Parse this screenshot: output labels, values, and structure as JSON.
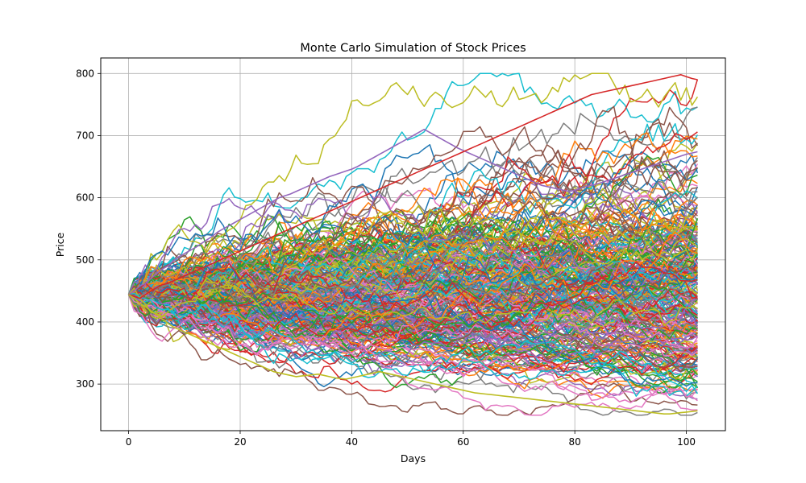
{
  "chart_data": {
    "type": "line",
    "title": "Monte Carlo Simulation of Stock Prices",
    "xlabel": "Days",
    "ylabel": "Price",
    "xlim": [
      -5,
      107
    ],
    "ylim": [
      225,
      825
    ],
    "x_ticks": [
      0,
      20,
      40,
      60,
      80,
      100
    ],
    "y_ticks": [
      300,
      400,
      500,
      600,
      700,
      800
    ],
    "grid": true,
    "legend": "none",
    "days": 103,
    "start_price": 444,
    "path_count": 300,
    "series_colors": [
      "#1f77b4",
      "#ff7f0e",
      "#2ca02c",
      "#d62728",
      "#9467bd",
      "#8c564b",
      "#e377c2",
      "#7f7f7f",
      "#bcbd22",
      "#17becf"
    ],
    "notable_series": [
      {
        "values": [
          444,
          450,
          458,
          462,
          470,
          478,
          485,
          490,
          498,
          505,
          510,
          515,
          520,
          526,
          532,
          538,
          545,
          550,
          555,
          560,
          565,
          570,
          575,
          580,
          585,
          590,
          595,
          600,
          603,
          606,
          610,
          614,
          618,
          622,
          626,
          630,
          634,
          637,
          640,
          643,
          646,
          650,
          655,
          660,
          665,
          670,
          675,
          680,
          685,
          690,
          695,
          700,
          705,
          710,
          705,
          700,
          695,
          690,
          685,
          680,
          676,
          672,
          668,
          664,
          660,
          656,
          652,
          648,
          644,
          640,
          636,
          632,
          628,
          624,
          620,
          618,
          616,
          614,
          612,
          610,
          612,
          615,
          618,
          620,
          622,
          625,
          628,
          631,
          634,
          637,
          640,
          643,
          646,
          649,
          652,
          655,
          658,
          661,
          664,
          667,
          670,
          672,
          674
        ]
      },
      {
        "values": [
          444,
          441,
          438,
          444,
          450,
          455,
          460,
          462,
          466,
          470,
          474,
          478,
          482,
          486,
          490,
          494,
          498,
          502,
          506,
          510,
          514,
          518,
          522,
          526,
          530,
          534,
          538,
          542,
          546,
          550,
          554,
          558,
          562,
          566,
          570,
          574,
          578,
          582,
          586,
          590,
          594,
          598,
          602,
          606,
          610,
          614,
          618,
          622,
          626,
          630,
          634,
          638,
          642,
          646,
          650,
          654,
          658,
          662,
          666,
          670,
          674,
          678,
          682,
          686,
          690,
          694,
          698,
          702,
          706,
          710,
          714,
          718,
          722,
          726,
          730,
          734,
          738,
          742,
          746,
          750,
          754,
          758,
          762,
          766,
          768,
          770,
          772,
          774,
          776,
          778,
          780,
          782,
          784,
          786,
          788,
          790,
          792,
          794,
          796,
          798,
          795,
          792,
          790
        ]
      },
      {
        "values": [
          444,
          438,
          430,
          425,
          418,
          412,
          405,
          398,
          392,
          388,
          384,
          380,
          376,
          372,
          368,
          364,
          360,
          356,
          352,
          348,
          344,
          340,
          336,
          332,
          328,
          324,
          320,
          318,
          316,
          314,
          312,
          313,
          314,
          315,
          316,
          314,
          312,
          310,
          309,
          308,
          310,
          312,
          314,
          316,
          318,
          320,
          318,
          316,
          314,
          312,
          310,
          308,
          306,
          304,
          302,
          300,
          298,
          296,
          294,
          292,
          290,
          288,
          286,
          285,
          284,
          283,
          282,
          281,
          280,
          279,
          278,
          277,
          276,
          275,
          274,
          273,
          272,
          271,
          270,
          269,
          268,
          267,
          266,
          265,
          264,
          263,
          262,
          261,
          260,
          259,
          258,
          257,
          256,
          255,
          254,
          253,
          252,
          252,
          253,
          254,
          255,
          256,
          257
        ]
      }
    ]
  }
}
